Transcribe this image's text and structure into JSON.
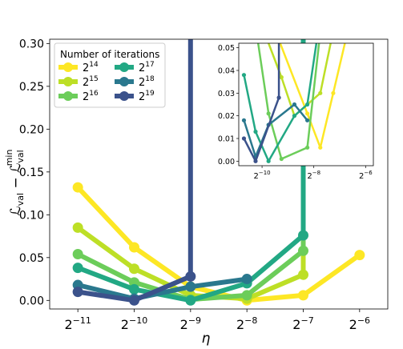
{
  "chart_data": {
    "type": "line",
    "xlabel": "η",
    "ylabel_main": "ℒ",
    "ylabel_sub1": "val",
    "ylabel_minus": " − ℒ",
    "ylabel_sub2": "val",
    "ylabel_sup2": "min",
    "x_scale": "log2",
    "xlim_exp": [
      -11.5,
      -5.5
    ],
    "ylim": [
      -0.01,
      0.305
    ],
    "x_ticks_exp": [
      -11,
      -10,
      -9,
      -8,
      -7,
      -6
    ],
    "y_ticks": [
      0.0,
      0.05,
      0.1,
      0.15,
      0.2,
      0.25,
      0.3
    ],
    "y_tick_labels": [
      "0.00",
      "0.05",
      "0.10",
      "0.15",
      "0.20",
      "0.25",
      "0.30"
    ],
    "legend": {
      "title": "Number of iterations",
      "placement": "upper-left"
    },
    "series": [
      {
        "label_base": "2",
        "label_exp": "14",
        "color": "#fde725",
        "x_exp": [
          -11,
          -10,
          -9,
          -8,
          -7,
          -6
        ],
        "y": [
          0.132,
          0.062,
          0.016,
          0.0,
          0.006,
          0.053
        ]
      },
      {
        "label_base": "2",
        "label_exp": "15",
        "color": "#bddf26",
        "x_exp": [
          -11,
          -10,
          -9,
          -8,
          -7,
          -7
        ],
        "y": [
          0.085,
          0.037,
          0.006,
          0.002,
          0.03,
          0.305
        ]
      },
      {
        "label_base": "2",
        "label_exp": "16",
        "color": "#6ccd5a",
        "x_exp": [
          -11,
          -10,
          -9,
          -8,
          -7,
          -7
        ],
        "y": [
          0.054,
          0.021,
          0.001,
          0.006,
          0.058,
          0.305
        ]
      },
      {
        "label_base": "2",
        "label_exp": "17",
        "color": "#22a884",
        "x_exp": [
          -11,
          -10,
          -9,
          -8,
          -7,
          -7
        ],
        "y": [
          0.038,
          0.013,
          0.0,
          0.02,
          0.076,
          0.305
        ]
      },
      {
        "label_base": "2",
        "label_exp": "18",
        "color": "#2a788e",
        "x_exp": [
          -11,
          -10,
          -9,
          -8
        ],
        "y": [
          0.018,
          0.002,
          0.016,
          0.025
        ]
      },
      {
        "label_base": "2",
        "label_exp": "19",
        "color": "#3b528b",
        "x_exp": [
          -11,
          -10,
          -9,
          -9
        ],
        "y": [
          0.01,
          0.0,
          0.028,
          0.305
        ]
      }
    ],
    "inset": {
      "xlim_exp": [
        -10.9,
        -5.7
      ],
      "ylim": [
        -0.002,
        0.052
      ],
      "x_ticks_exp": [
        -10,
        -8,
        -6
      ],
      "y_ticks": [
        0.0,
        0.01,
        0.02,
        0.03,
        0.04,
        0.05
      ],
      "y_tick_labels": [
        "0.00",
        "0.01",
        "0.02",
        "0.03",
        "0.04",
        "0.05"
      ],
      "series": [
        {
          "color": "#fde725",
          "x_exp": [
            -9.3,
            -8.25,
            -7.75,
            -7.25,
            -6.8
          ],
          "y": [
            0.052,
            0.021,
            0.006,
            0.03,
            0.052
          ]
        },
        {
          "color": "#bddf26",
          "x_exp": [
            -9.75,
            -9.25,
            -8.75,
            -7.75,
            -7.35
          ],
          "y": [
            0.052,
            0.037,
            0.02,
            0.03,
            0.052
          ]
        },
        {
          "color": "#6ccd5a",
          "x_exp": [
            -10.15,
            -9.75,
            -9.25,
            -8.25,
            -7.8
          ],
          "y": [
            0.052,
            0.021,
            0.001,
            0.006,
            0.052
          ]
        },
        {
          "color": "#22a884",
          "x_exp": [
            -10.7,
            -10.25,
            -9.75,
            -8.75,
            -8.25,
            -7.9
          ],
          "y": [
            0.038,
            0.013,
            0.0,
            0.02,
            0.025,
            0.052
          ]
        },
        {
          "color": "#2a788e",
          "x_exp": [
            -10.7,
            -10.25,
            -9.75,
            -8.75,
            -8.25
          ],
          "y": [
            0.018,
            0.002,
            0.016,
            0.025,
            0.018
          ]
        },
        {
          "color": "#3b528b",
          "x_exp": [
            -10.7,
            -10.25,
            -9.35,
            -9.35
          ],
          "y": [
            0.01,
            0.0,
            0.028,
            0.052
          ]
        }
      ]
    }
  }
}
